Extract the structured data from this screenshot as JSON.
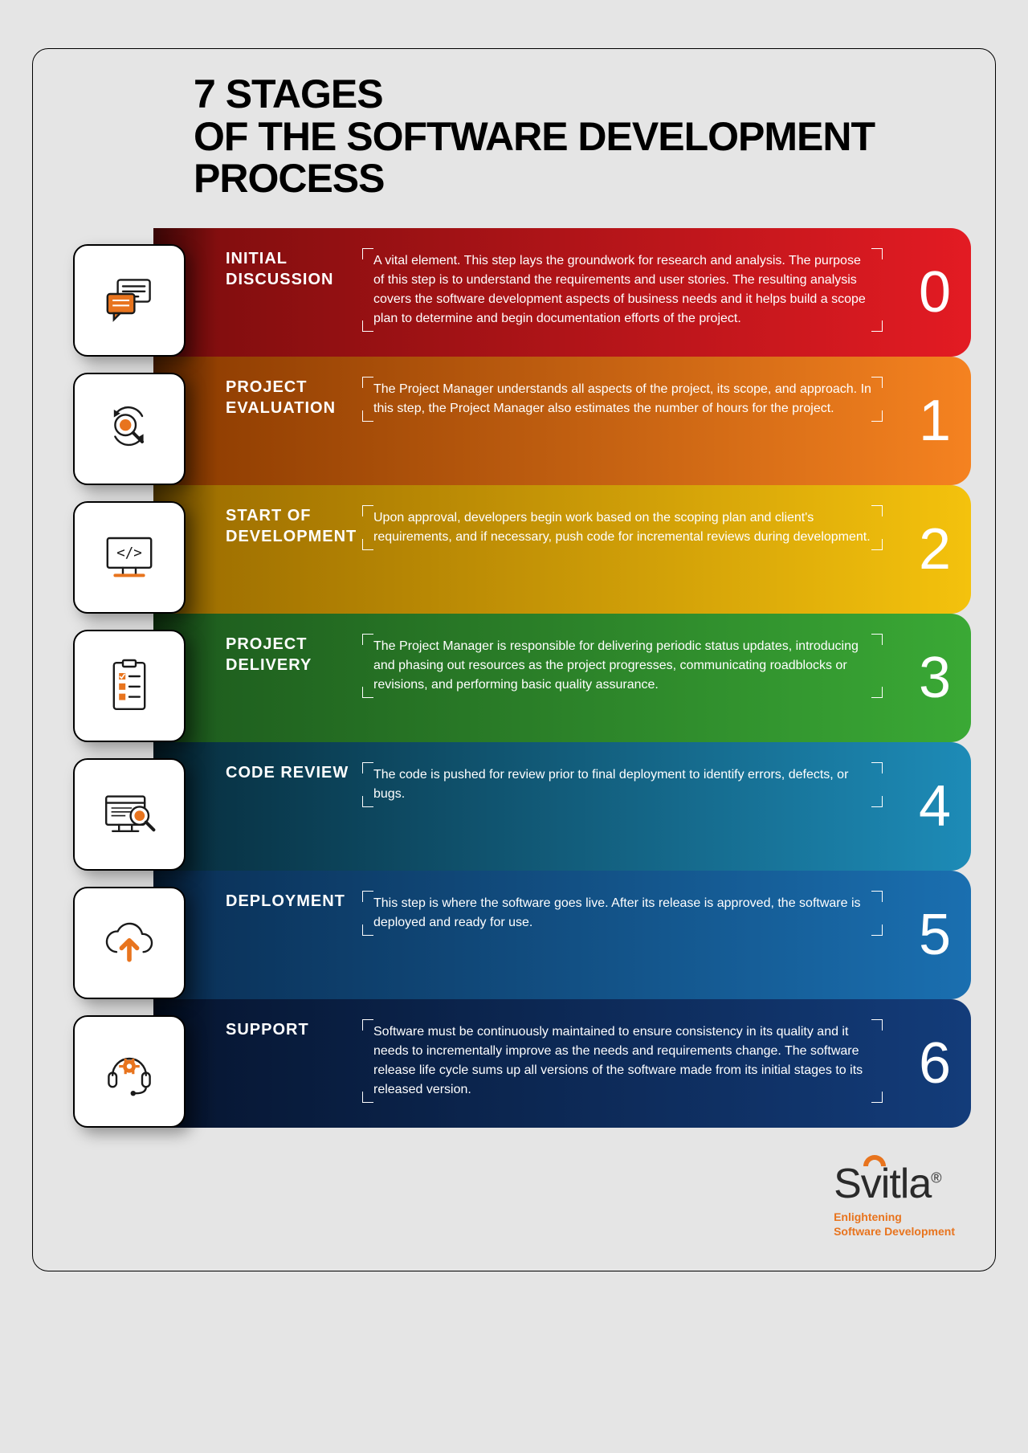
{
  "title_line1": "7 STAGES",
  "title_line2": "OF THE SOFTWARE DEVELOPMENT PROCESS",
  "accent_color": "#e8741e",
  "icon_stroke": "#1a1a1a",
  "stages": [
    {
      "num": "0",
      "title": "INITIAL DISCUSSION",
      "body": "A vital element. This step lays the groundwork for research and analysis. The purpose of this step is to understand the requirements and user stories. The resulting analysis covers the software development aspects of business needs and it helps build a scope plan to determine and begin documentation efforts of the project.",
      "bg_from": "#7b0d0d",
      "bg_to": "#e31b23",
      "icon": "chat"
    },
    {
      "num": "1",
      "title": "PROJECT EVALUATION",
      "body": "The Project Manager understands all aspects of the project, its scope, and approach. In this step, the Project Manager also estimates the number of hours for the project.",
      "bg_from": "#8a3a00",
      "bg_to": "#f58220",
      "icon": "magnify-cycle"
    },
    {
      "num": "2",
      "title": "START OF DEVELOPMENT",
      "body": "Upon approval, developers begin work based on the scoping plan and client's requirements, and if necessary, push code for incremental reviews during development.",
      "bg_from": "#9a6b00",
      "bg_to": "#f4c20d",
      "icon": "code-screen"
    },
    {
      "num": "3",
      "title": "PROJECT DELIVERY",
      "body": "The Project Manager is responsible for delivering periodic status updates, introducing and phasing out resources as the project progresses, communicating roadblocks or revisions, and performing basic quality assurance.",
      "bg_from": "#1d5a1d",
      "bg_to": "#3aa935",
      "icon": "checklist"
    },
    {
      "num": "4",
      "title": "CODE REVIEW",
      "body": "The code is pushed for review prior to final deployment to identify errors, defects, or bugs.",
      "bg_from": "#072d3d",
      "bg_to": "#1d8bb7",
      "icon": "review"
    },
    {
      "num": "5",
      "title": "DEPLOYMENT",
      "body": "This step is where the software goes live. After its release is approved, the software is deployed and ready for use.",
      "bg_from": "#0a2f55",
      "bg_to": "#1a6fb0",
      "icon": "cloud-up"
    },
    {
      "num": "6",
      "title": "SUPPORT",
      "body": "Software must be continuously maintained to ensure consistency in its quality and it needs to incrementally improve as the needs and requirements change. The software release life cycle sums up all versions of the software made from its initial stages to its released version.",
      "bg_from": "#061530",
      "bg_to": "#133c7a",
      "icon": "support"
    }
  ],
  "logo": {
    "name": "Svitla",
    "registered": "®",
    "tagline1": "Enlightening",
    "tagline2": "Software Development"
  }
}
